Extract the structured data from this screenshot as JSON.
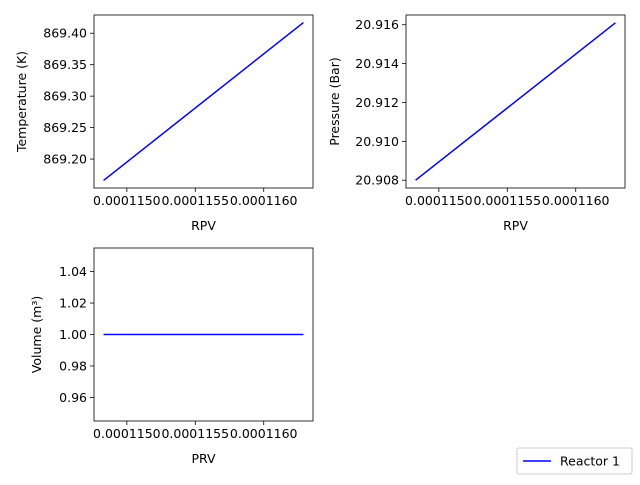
{
  "chart_data": [
    {
      "type": "line",
      "xlabel": "RPV",
      "ylabel": "Temperature (K)",
      "x": [
        0.00011483,
        0.00011629
      ],
      "xlim": [
        0.00011476,
        0.00011636
      ],
      "xticks": [
        0.000115,
        0.0001155,
        0.000116
      ],
      "xtick_labels": [
        "0.0001150",
        "0.0001155",
        "0.0001160"
      ],
      "series": [
        {
          "color": "#0000ff",
          "values": [
            869.166,
            869.417
          ]
        }
      ],
      "ylim": [
        869.154,
        869.429
      ],
      "yticks": [
        869.2,
        869.25,
        869.3,
        869.35,
        869.4
      ],
      "ytick_labels": [
        "869.20",
        "869.25",
        "869.30",
        "869.35",
        "869.40"
      ]
    },
    {
      "type": "line",
      "xlabel": "RPV",
      "ylabel": "Pressure (Bar)",
      "x": [
        0.00011483,
        0.00011629
      ],
      "xlim": [
        0.00011476,
        0.00011636
      ],
      "xticks": [
        0.000115,
        0.0001155,
        0.000116
      ],
      "xtick_labels": [
        "0.0001150",
        "0.0001155",
        "0.0001160"
      ],
      "series": [
        {
          "color": "#0000ff",
          "values": [
            20.908,
            20.9161
          ]
        }
      ],
      "ylim": [
        20.9076,
        20.9165
      ],
      "yticks": [
        20.908,
        20.91,
        20.912,
        20.914,
        20.916
      ],
      "ytick_labels": [
        "20.908",
        "20.910",
        "20.912",
        "20.914",
        "20.916"
      ]
    },
    {
      "type": "line",
      "xlabel": "PRV",
      "ylabel": "Volume (m³)",
      "x": [
        0.00011483,
        0.00011629
      ],
      "xlim": [
        0.00011476,
        0.00011636
      ],
      "xticks": [
        0.000115,
        0.0001155,
        0.000116
      ],
      "xtick_labels": [
        "0.0001150",
        "0.0001155",
        "0.0001160"
      ],
      "series": [
        {
          "color": "#0000ff",
          "values": [
            1.0,
            1.0
          ]
        }
      ],
      "ylim": [
        0.945,
        1.055
      ],
      "yticks": [
        0.96,
        0.98,
        1.0,
        1.02,
        1.04
      ],
      "ytick_labels": [
        "0.96",
        "0.98",
        "1.00",
        "1.02",
        "1.04"
      ]
    }
  ],
  "legend": {
    "placement": "bottom-right",
    "entries": [
      {
        "label": "Reactor 1",
        "color": "#0000ff"
      }
    ]
  }
}
